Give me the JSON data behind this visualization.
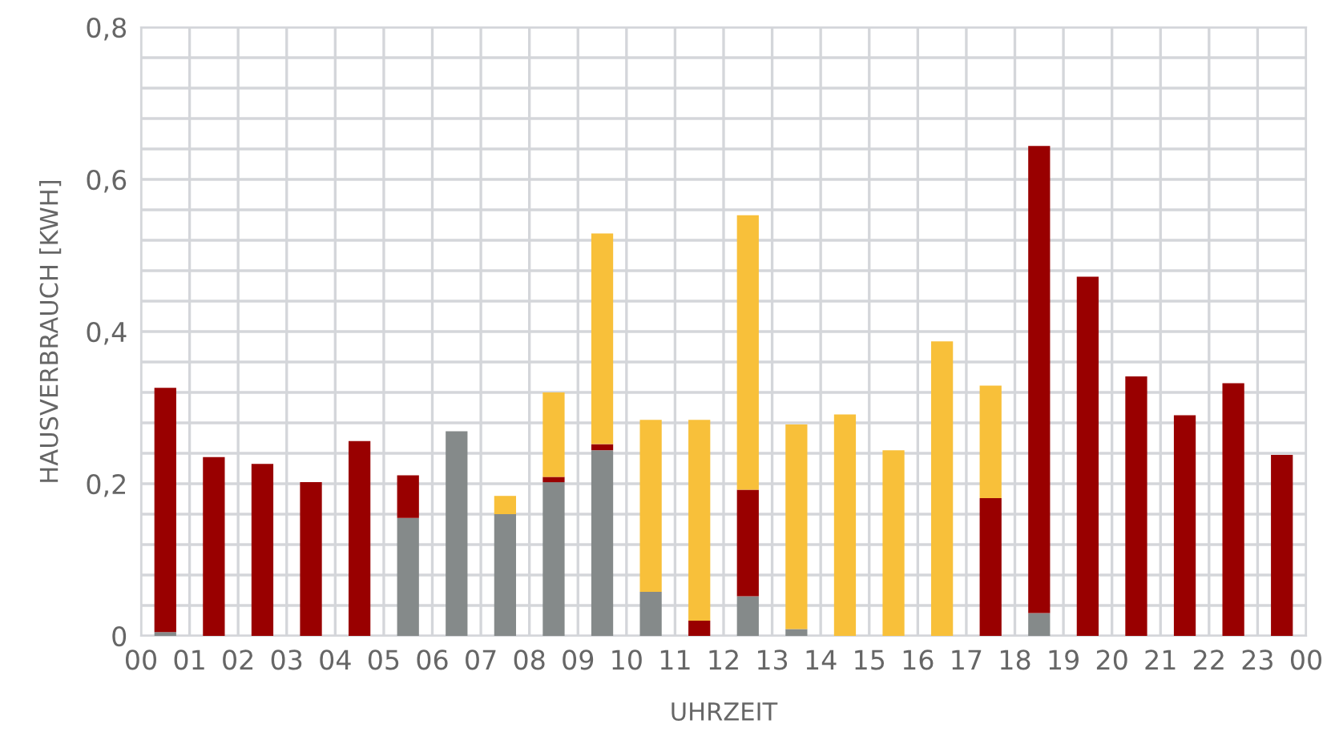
{
  "chart_data": {
    "type": "bar",
    "stacked": true,
    "xlabel": "UHRZEIT",
    "ylabel": "HAUSVERBRAUCH [KWH]",
    "x": [
      0.5,
      1.5,
      2.5,
      3.5,
      4.5,
      5.5,
      6.5,
      7.5,
      8.5,
      9.5,
      10.5,
      11.5,
      12.5,
      13.5,
      14.5,
      15.5,
      16.5,
      17.5,
      18.5,
      19.5,
      20.5,
      21.5,
      22.5,
      23.5
    ],
    "xlim": [
      0,
      24
    ],
    "xticks": [
      {
        "value": 0,
        "label": "00"
      },
      {
        "value": 1,
        "label": "01"
      },
      {
        "value": 2,
        "label": "02"
      },
      {
        "value": 3,
        "label": "03"
      },
      {
        "value": 4,
        "label": "04"
      },
      {
        "value": 5,
        "label": "05"
      },
      {
        "value": 6,
        "label": "06"
      },
      {
        "value": 7,
        "label": "07"
      },
      {
        "value": 8,
        "label": "08"
      },
      {
        "value": 9,
        "label": "09"
      },
      {
        "value": 10,
        "label": "10"
      },
      {
        "value": 11,
        "label": "11"
      },
      {
        "value": 12,
        "label": "12"
      },
      {
        "value": 13,
        "label": "13"
      },
      {
        "value": 14,
        "label": "14"
      },
      {
        "value": 15,
        "label": "15"
      },
      {
        "value": 16,
        "label": "16"
      },
      {
        "value": 17,
        "label": "17"
      },
      {
        "value": 18,
        "label": "18"
      },
      {
        "value": 19,
        "label": "19"
      },
      {
        "value": 20,
        "label": "20"
      },
      {
        "value": 21,
        "label": "21"
      },
      {
        "value": 22,
        "label": "22"
      },
      {
        "value": 23,
        "label": "23"
      },
      {
        "value": 24,
        "label": "00"
      }
    ],
    "ylim": [
      0,
      0.8
    ],
    "yticks": [
      0,
      {
        "value": 0.04,
        "label": null
      },
      {
        "value": 0.08,
        "label": null
      },
      {
        "value": 0.12,
        "label": null
      },
      {
        "value": 0.16,
        "label": null
      },
      {
        "value": 0.2,
        "label": "0,2"
      },
      {
        "value": 0.24,
        "label": null
      },
      {
        "value": 0.28,
        "label": null
      },
      {
        "value": 0.32,
        "label": null
      },
      {
        "value": 0.36,
        "label": null
      },
      {
        "value": 0.4,
        "label": "0,4"
      },
      {
        "value": 0.44,
        "label": null
      },
      {
        "value": 0.48,
        "label": null
      },
      {
        "value": 0.52,
        "label": null
      },
      {
        "value": 0.56,
        "label": null
      },
      {
        "value": 0.6,
        "label": "0,6"
      },
      {
        "value": 0.64,
        "label": null
      },
      {
        "value": 0.68,
        "label": null
      },
      {
        "value": 0.72,
        "label": null
      },
      {
        "value": 0.76,
        "label": null
      },
      {
        "value": 0.8,
        "label": "0,8"
      }
    ],
    "grid": true,
    "series": [
      {
        "color": "#858a8a",
        "values": [
          0.005,
          0,
          0,
          0,
          0,
          0.155,
          0.269,
          0.16,
          0.202,
          0.244,
          0.058,
          0,
          0.052,
          0.009,
          0,
          0,
          0,
          0,
          0.03,
          0,
          0,
          0,
          0,
          0
        ]
      },
      {
        "color": "#990000",
        "values": [
          0.321,
          0.235,
          0.226,
          0.202,
          0.256,
          0.056,
          0,
          0,
          0.007,
          0.008,
          0,
          0.02,
          0.14,
          0,
          0,
          0,
          0,
          0.181,
          0.614,
          0.472,
          0.341,
          0.29,
          0.332,
          0.238
        ]
      },
      {
        "color": "#f8c03a",
        "values": [
          0,
          0,
          0,
          0,
          0,
          0,
          0,
          0.024,
          0.111,
          0.277,
          0.226,
          0.264,
          0.361,
          0.269,
          0.291,
          0.244,
          0.387,
          0.148,
          0,
          0,
          0,
          0,
          0,
          0
        ]
      }
    ]
  }
}
